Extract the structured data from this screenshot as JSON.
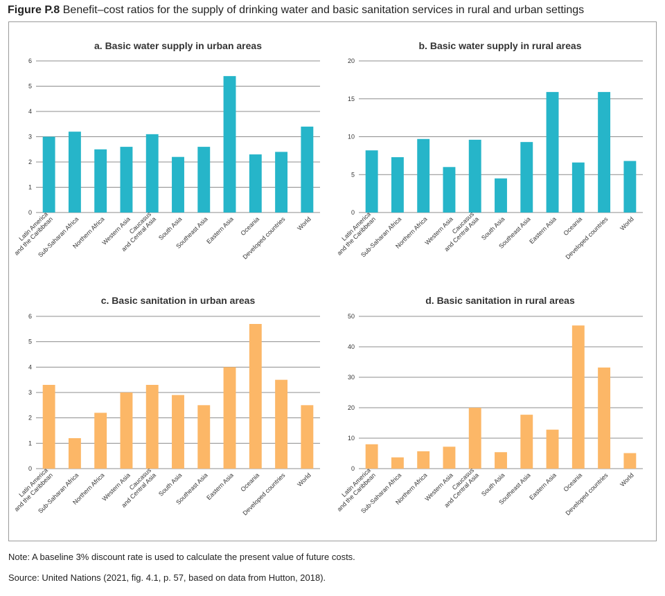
{
  "figure": {
    "label": "Figure P.8",
    "title": "Benefit–cost ratios for the supply of drinking water and basic sanitation services in rural and urban settings"
  },
  "note": "Note: A baseline 3% discount rate is used to calculate the present value of future costs.",
  "source": "Source: United Nations (2021, fig. 4.1, p. 57, based on data from Hutton, 2018).",
  "colors": {
    "water": "#26b5c9",
    "sanitation": "#fcb767",
    "grid": "#8c8c8c"
  },
  "chart_data": [
    {
      "type": "bar",
      "title": "a. Basic water supply in urban areas",
      "categories": [
        "Latin America\nand the Caribbean",
        "Sub-Saharan Africa",
        "Northern Africa",
        "Western Asia",
        "Caucasus\nand Central Asia",
        "South Asia",
        "Southeast Asia",
        "Eastern Asia",
        "Oceania",
        "Developed countries",
        "World"
      ],
      "values": [
        3.0,
        3.2,
        2.5,
        2.6,
        3.1,
        2.2,
        2.6,
        5.4,
        2.3,
        2.4,
        3.4
      ],
      "ylim": [
        0,
        6
      ],
      "yticks": [
        0,
        1,
        2,
        3,
        4,
        5,
        6
      ],
      "color": "#26b5c9",
      "grid": true
    },
    {
      "type": "bar",
      "title": "b. Basic water supply in rural areas",
      "categories": [
        "Latin America\nand the Caribbean",
        "Sub-Saharan Africa",
        "Northern Africa",
        "Western Asia",
        "Caucasus\nand Central Asia",
        "South Asia",
        "Southeast Asia",
        "Eastern Asia",
        "Oceania",
        "Developed countries",
        "World"
      ],
      "values": [
        8.2,
        7.3,
        9.7,
        6.0,
        9.6,
        4.5,
        9.3,
        15.9,
        6.6,
        15.9,
        6.8
      ],
      "ylim": [
        0,
        20
      ],
      "yticks": [
        0,
        5,
        10,
        15,
        20
      ],
      "color": "#26b5c9",
      "grid": true
    },
    {
      "type": "bar",
      "title": "c. Basic sanitation in urban areas",
      "categories": [
        "Latin America\nand the Caribbean",
        "Sub-Saharan Africa",
        "Northern Africa",
        "Western Asia",
        "Caucasus\nand Central Asia",
        "South Asia",
        "Southeast Asia",
        "Eastern Asia",
        "Oceania",
        "Developed countries",
        "World"
      ],
      "values": [
        3.3,
        1.2,
        2.2,
        3.0,
        3.3,
        2.9,
        2.5,
        4.0,
        5.7,
        3.5,
        2.5
      ],
      "ylim": [
        0,
        6
      ],
      "yticks": [
        0,
        1,
        2,
        3,
        4,
        5,
        6
      ],
      "color": "#fcb767",
      "grid": true
    },
    {
      "type": "bar",
      "title": "d. Basic sanitation in rural areas",
      "categories": [
        "Latin America\nand the Caribbean",
        "Sub-Saharan Africa",
        "Northern Africa",
        "Western Asia",
        "Caucasus\nand Central Asia",
        "South Asia",
        "Southeast Asia",
        "Eastern Asia",
        "Oceania",
        "Developed countries",
        "World"
      ],
      "values": [
        8.0,
        3.7,
        5.7,
        7.2,
        20.0,
        5.4,
        17.7,
        12.8,
        47.0,
        33.2,
        5.1
      ],
      "ylim": [
        0,
        50
      ],
      "yticks": [
        0,
        10,
        20,
        30,
        40,
        50
      ],
      "color": "#fcb767",
      "grid": true
    }
  ]
}
